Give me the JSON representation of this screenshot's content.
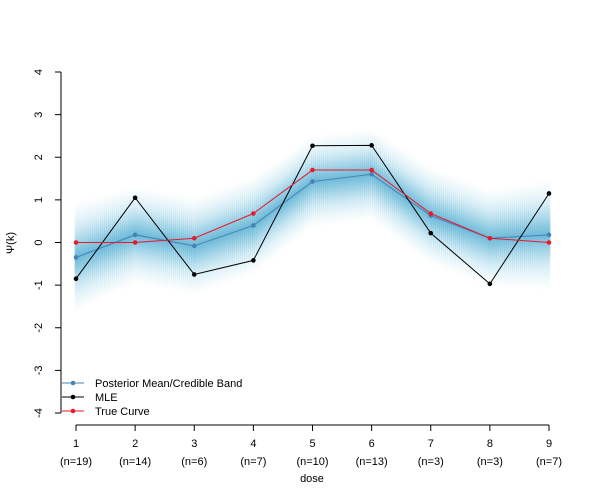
{
  "chart_data": {
    "type": "line",
    "title": "",
    "xlabel": "dose",
    "ylabel": "Ψ(k)",
    "ylim": [
      -4,
      4
    ],
    "yticks": [
      -4,
      -3,
      -2,
      -1,
      0,
      1,
      2,
      3,
      4
    ],
    "x": [
      1,
      2,
      3,
      4,
      5,
      6,
      7,
      8,
      9
    ],
    "x_tick_labels": [
      "1",
      "2",
      "3",
      "4",
      "5",
      "6",
      "7",
      "8",
      "9"
    ],
    "x_sub_labels": [
      "(n=19)",
      "(n=14)",
      "(n=6)",
      "(n=7)",
      "(n=10)",
      "(n=13)",
      "(n=3)",
      "(n=3)",
      "(n=7)"
    ],
    "band_halfwidth": [
      0.9,
      0.8,
      0.8,
      0.8,
      0.75,
      0.75,
      0.8,
      0.8,
      0.9
    ],
    "series": [
      {
        "name": "Posterior Mean/Credible Band",
        "color": "#4682b4",
        "values": [
          -0.35,
          0.18,
          -0.08,
          0.4,
          1.43,
          1.6,
          0.63,
          0.1,
          0.18
        ]
      },
      {
        "name": "MLE",
        "color": "#000000",
        "values": [
          -0.85,
          1.05,
          -0.75,
          -0.42,
          2.27,
          2.28,
          0.22,
          -0.97,
          1.15
        ]
      },
      {
        "name": "True Curve",
        "color": "#e8192c",
        "values": [
          0.0,
          0.0,
          0.1,
          0.68,
          1.7,
          1.7,
          0.68,
          0.1,
          0.0
        ]
      }
    ],
    "legend_position": "bottom-left",
    "grid": false
  }
}
